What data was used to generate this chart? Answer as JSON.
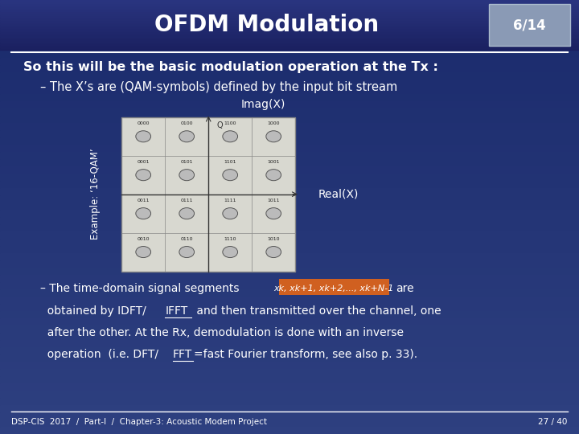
{
  "title": "OFDM Modulation",
  "slide_number": "6/14",
  "bg_color_top": "#1a2a6c",
  "bg_color_bottom": "#2e4080",
  "text_color": "#ffffff",
  "line1": "So this will be the basic modulation operation at the Tx :",
  "line2": "– The X’s are (QAM-symbols) defined by the input bit stream",
  "imag_label": "Imag(X)",
  "real_label": "Real(X)",
  "example_label": "Example: ‘16-QAM’",
  "bullet2_line1": "– The time-domain signal segments",
  "formula_text": "xk, xk+1, xk+2,..., xk+N-1",
  "are_text": "are",
  "obtained_text": "  obtained by IDFT/",
  "ifft_text": "IFFT",
  "after_ifft": " and then transmitted over the channel, one",
  "line_after": "  after the other. At the Rx, demodulation is done with an inverse",
  "line_op": "  operation  (i.e. DFT/",
  "fft_text": "FFT",
  "after_fft": "=fast Fourier transform, see also p. 33).",
  "footer_left": "DSP-CIS  2017  /  Part-I  /  Chapter-3: Acoustic Modem Project",
  "footer_right": "27 / 40",
  "labels_16qam": [
    [
      "0000",
      "0100",
      "1100",
      "1000"
    ],
    [
      "0001",
      "0101",
      "1101",
      "1001"
    ],
    [
      "0011",
      "0111",
      "1111",
      "1011"
    ],
    [
      "0010",
      "0110",
      "1110",
      "1010"
    ]
  ]
}
